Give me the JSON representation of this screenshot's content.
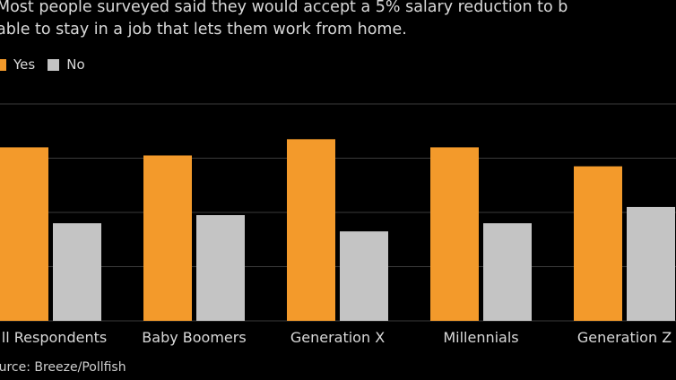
{
  "colors": {
    "background": "#000000",
    "yes": "#f39a2b",
    "no": "#c4c4c4",
    "grid": "#3a3a3a",
    "text": "#d9d9d9"
  },
  "header": {
    "subtitle_line1": "Most people surveyed said they would accept a 5% salary reduction to b",
    "subtitle_line2": "able to stay in a job that lets them work from home."
  },
  "legend": {
    "items": [
      {
        "label": "Yes",
        "color": "#f39a2b"
      },
      {
        "label": "No",
        "color": "#c4c4c4"
      }
    ]
  },
  "footer": {
    "source": "ource: Breeze/Pollfish"
  },
  "chart_data": {
    "type": "bar",
    "categories": [
      "ll Respondents",
      "Baby Boomers",
      "Generation X",
      "Millennials",
      "Generation Z"
    ],
    "series": [
      {
        "name": "Yes",
        "values": [
          64,
          61,
          67,
          64,
          57
        ]
      },
      {
        "name": "No",
        "values": [
          36,
          39,
          33,
          36,
          42
        ]
      }
    ],
    "ylim": [
      0,
      80
    ],
    "grid": true,
    "legend_position": "top-left"
  }
}
